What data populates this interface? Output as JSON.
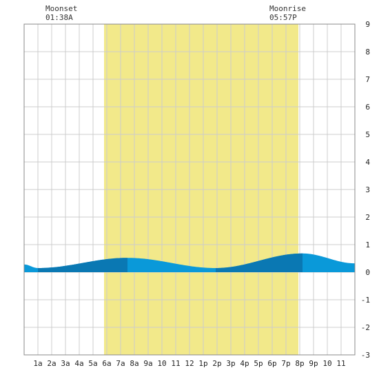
{
  "moon": {
    "moonset_label": "Moonset",
    "moonset_time": "01:38A",
    "moonrise_label": "Moonrise",
    "moonrise_time": "05:57P"
  },
  "chart_data": {
    "type": "area",
    "title": "",
    "xlabel": "",
    "ylabel": "",
    "x_unit": "hour of day",
    "xlim": [
      0,
      24
    ],
    "ylim": [
      -3,
      9
    ],
    "y_ticks": [
      "-3",
      "-2",
      "-1",
      "0",
      "1",
      "2",
      "3",
      "4",
      "5",
      "6",
      "7",
      "8",
      "9"
    ],
    "x_ticks": [
      {
        "x": 1,
        "label": "1a"
      },
      {
        "x": 2,
        "label": "2a"
      },
      {
        "x": 3,
        "label": "3a"
      },
      {
        "x": 4,
        "label": "4a"
      },
      {
        "x": 5,
        "label": "5a"
      },
      {
        "x": 6,
        "label": "6a"
      },
      {
        "x": 7,
        "label": "7a"
      },
      {
        "x": 8,
        "label": "8a"
      },
      {
        "x": 9,
        "label": "9a"
      },
      {
        "x": 10,
        "label": "10"
      },
      {
        "x": 11,
        "label": "11"
      },
      {
        "x": 12,
        "label": "12"
      },
      {
        "x": 13,
        "label": "1p"
      },
      {
        "x": 14,
        "label": "2p"
      },
      {
        "x": 15,
        "label": "3p"
      },
      {
        "x": 16,
        "label": "4p"
      },
      {
        "x": 17,
        "label": "5p"
      },
      {
        "x": 18,
        "label": "6p"
      },
      {
        "x": 19,
        "label": "7p"
      },
      {
        "x": 20,
        "label": "8p"
      },
      {
        "x": 21,
        "label": "9p"
      },
      {
        "x": 22,
        "label": "10"
      },
      {
        "x": 23,
        "label": "11"
      }
    ],
    "grid": true,
    "daylight": {
      "start": 5.8,
      "end": 19.9
    },
    "tide_extremes": [
      {
        "x": 1.0,
        "y": 0.15
      },
      {
        "x": 7.5,
        "y": 0.52
      },
      {
        "x": 13.9,
        "y": 0.15
      },
      {
        "x": 20.2,
        "y": 0.68
      },
      {
        "x": 24.0,
        "y": 0.32
      }
    ],
    "tide_start": {
      "x": 0,
      "y": 0.28
    },
    "highlight_segments": [
      {
        "start": 1.0,
        "end": 7.5
      },
      {
        "start": 13.9,
        "end": 20.2
      }
    ],
    "colors": {
      "daylight": "#f2e98a",
      "tide": "#0a99d9",
      "tide_dark": "#0a78b3",
      "grid": "#cccccc"
    }
  }
}
